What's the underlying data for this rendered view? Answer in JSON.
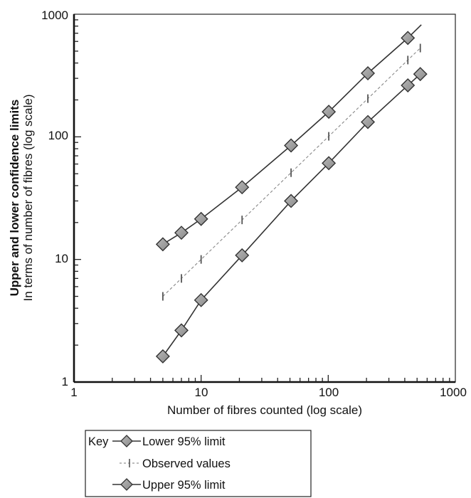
{
  "chart_data": {
    "type": "line",
    "title": "",
    "xlabel": "Number of fibres counted (log scale)",
    "ylabel_bold": "Upper and lower confidence limits",
    "ylabel": "In terms of number of fibres (log scale)",
    "xscale": "log",
    "yscale": "log",
    "xlim": [
      1,
      1000
    ],
    "ylim": [
      1,
      1000
    ],
    "x_tick_labels": [
      "1",
      "10",
      "100",
      "1000"
    ],
    "y_tick_labels": [
      "1",
      "10",
      "100",
      "1000"
    ],
    "grid": false,
    "legend": {
      "title": "Key",
      "position": "below",
      "entries": [
        "Lower 95% limit",
        "Observed values",
        "Upper 95% limit"
      ]
    },
    "series": [
      {
        "name": "Upper 95% limit",
        "style": "solid line with diamond markers",
        "x": [
          5,
          7,
          10,
          21,
          51,
          101,
          205,
          423
        ],
        "y": [
          13.3,
          16.5,
          21.4,
          38.8,
          85,
          160,
          330,
          640
        ],
        "line_end": [
          540,
          820
        ]
      },
      {
        "name": "Observed values",
        "style": "dashed line with tick markers",
        "x": [
          5,
          7,
          10,
          21,
          51,
          101,
          205,
          423,
          530
        ],
        "y": [
          5,
          7,
          10,
          21,
          51,
          101,
          205,
          423,
          530
        ]
      },
      {
        "name": "Lower 95% limit",
        "style": "solid line with diamond markers",
        "x": [
          5,
          7,
          10,
          21,
          51,
          101,
          205,
          423,
          530
        ],
        "y": [
          1.62,
          2.64,
          4.66,
          10.8,
          30,
          61,
          132,
          263,
          325
        ]
      }
    ]
  }
}
